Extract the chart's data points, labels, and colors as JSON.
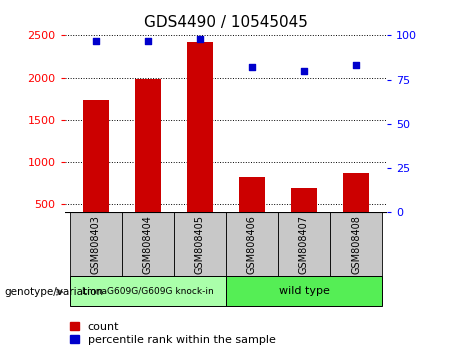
{
  "title": "GDS4490 / 10545045",
  "categories": [
    "GSM808403",
    "GSM808404",
    "GSM808405",
    "GSM808406",
    "GSM808407",
    "GSM808408"
  ],
  "bar_values": [
    1730,
    1980,
    2420,
    820,
    690,
    870
  ],
  "scatter_values": [
    97,
    97,
    98,
    82,
    80,
    83
  ],
  "bar_color": "#cc0000",
  "scatter_color": "#0000cc",
  "ylim_left": [
    400,
    2500
  ],
  "ylim_right": [
    0,
    100
  ],
  "yticks_left": [
    500,
    1000,
    1500,
    2000,
    2500
  ],
  "yticks_right": [
    0,
    25,
    50,
    75,
    100
  ],
  "group1_label": "LmnaG609G/G609G knock-in",
  "group2_label": "wild type",
  "group1_color": "#aaffaa",
  "group2_color": "#55ee55",
  "group1_indices": [
    0,
    1,
    2
  ],
  "group2_indices": [
    3,
    4,
    5
  ],
  "xticklabel_area_color": "#c8c8c8",
  "legend_count_label": "count",
  "legend_percentile_label": "percentile rank within the sample",
  "genotype_label": "genotype/variation",
  "title_fontsize": 11,
  "tick_fontsize": 8,
  "legend_fontsize": 8
}
